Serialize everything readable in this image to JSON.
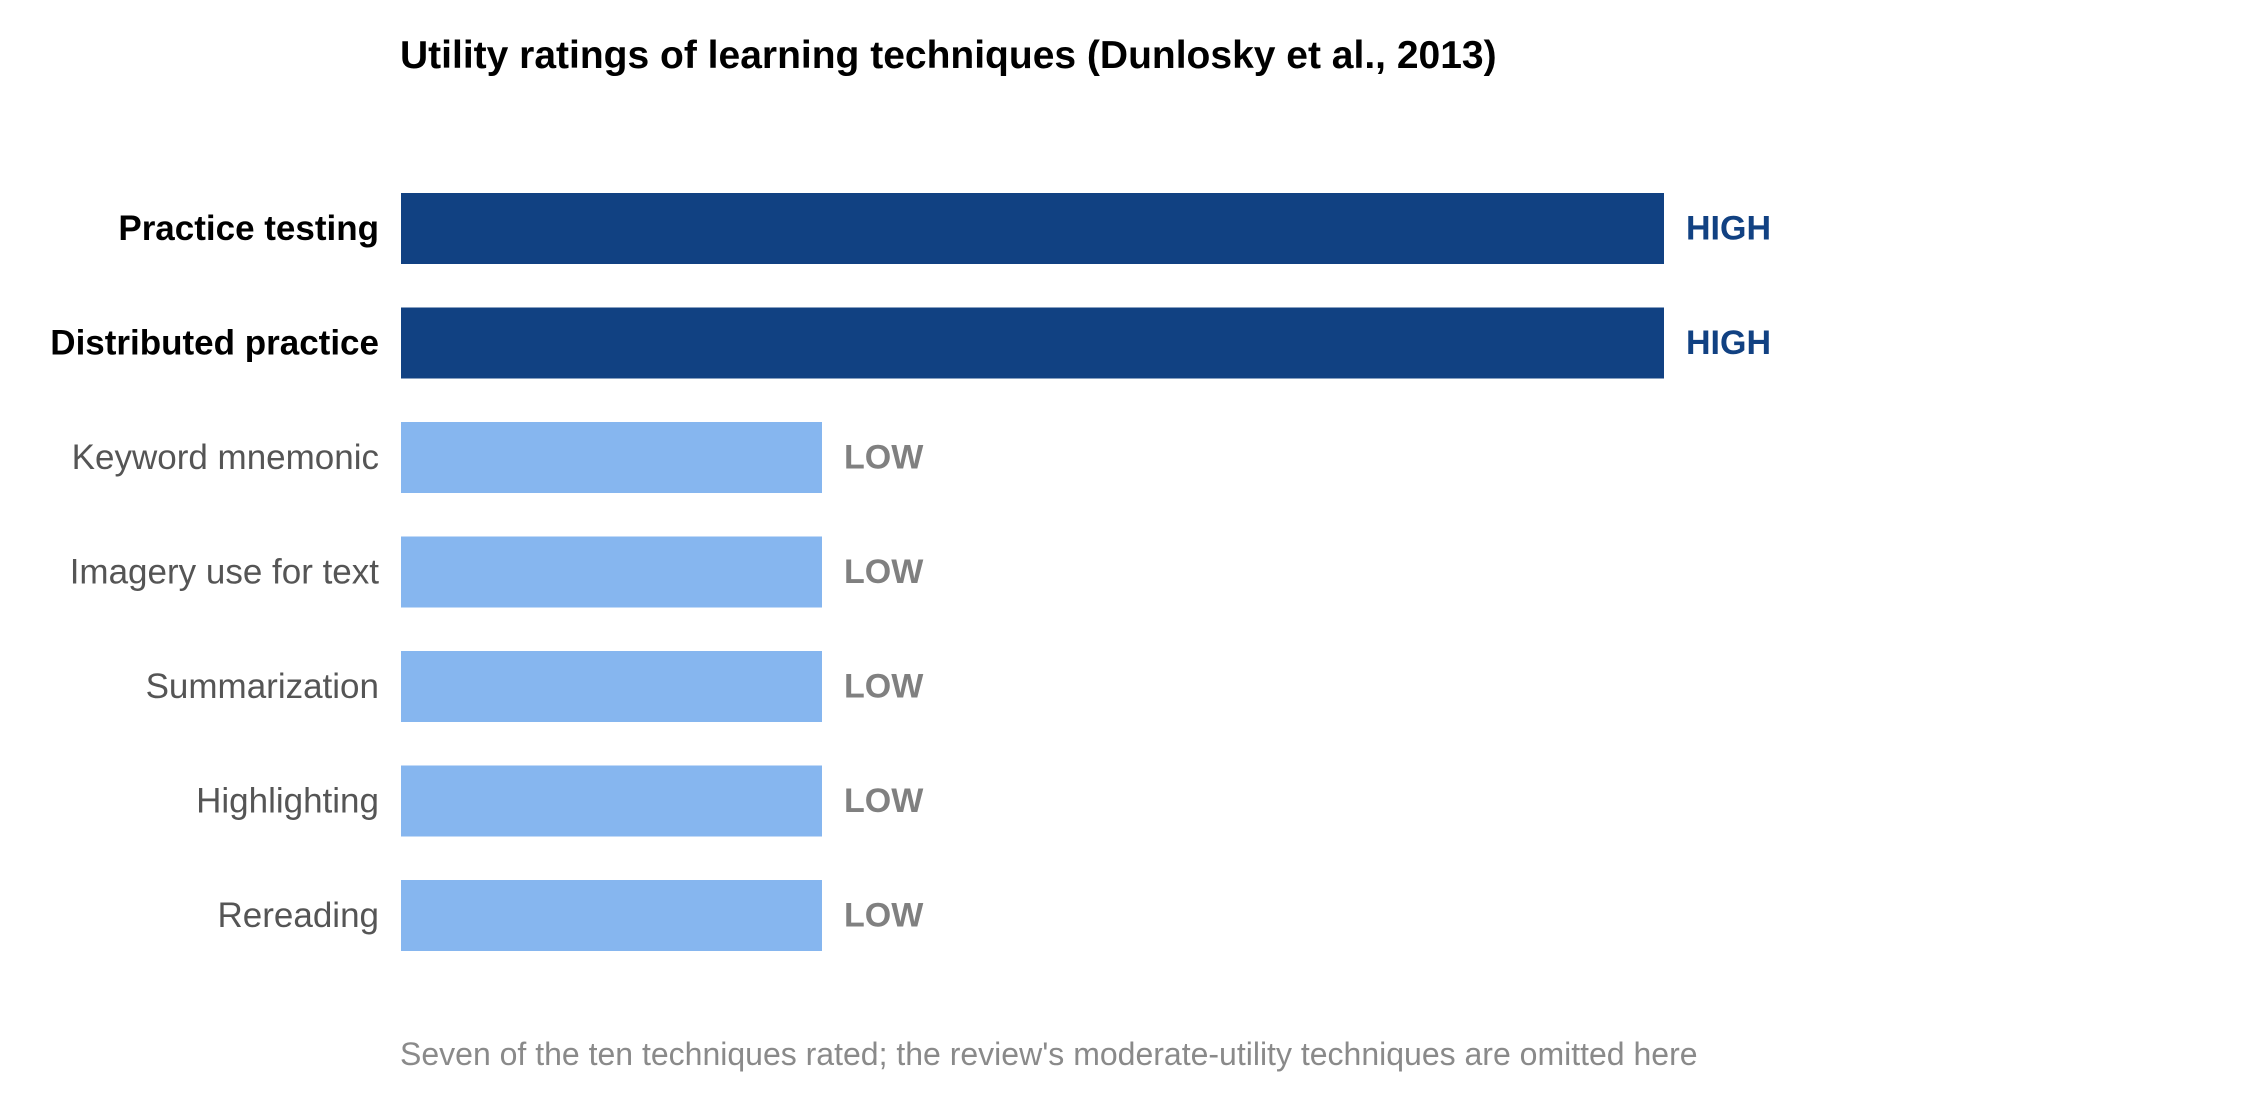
{
  "chart_data": {
    "type": "bar",
    "orientation": "horizontal",
    "title": "Utility ratings of learning techniques (Dunlosky et al., 2013)",
    "note": "Seven of the ten techniques rated; the review's moderate-utility techniques are omitted here",
    "xlabel": "",
    "ylabel": "",
    "categories": [
      "Practice testing",
      "Distributed practice",
      "Keyword mnemonic",
      "Imagery use for text",
      "Summarization",
      "Highlighting",
      "Rereading"
    ],
    "ratings": [
      "HIGH",
      "HIGH",
      "LOW",
      "LOW",
      "LOW",
      "LOW",
      "LOW"
    ],
    "values": [
      3,
      3,
      1,
      1,
      1,
      1,
      1
    ],
    "xlim": [
      0,
      3
    ],
    "grid": false,
    "axes_visible": false,
    "highlighted_categories": [
      "Practice testing",
      "Distributed practice"
    ],
    "colors": {
      "high_bar": "#114182",
      "low_bar": "#86b6ef",
      "high_label": "#114182",
      "low_label": "#808080",
      "highlight_category_text": "#000000",
      "category_text": "#555555",
      "note_text": "#8a8a8a"
    }
  }
}
